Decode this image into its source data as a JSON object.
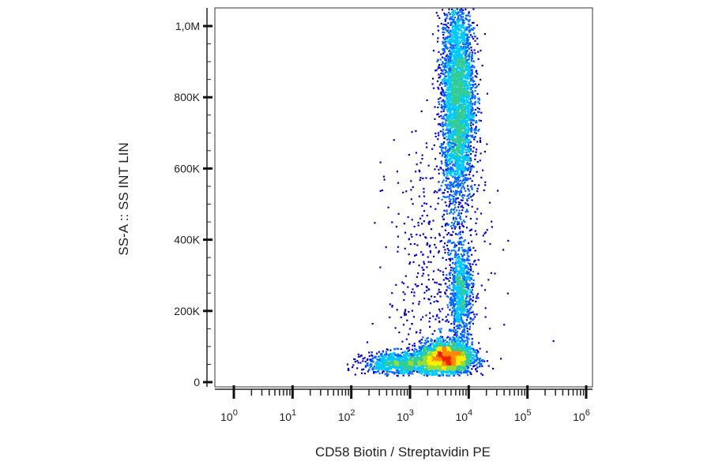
{
  "chart_data": {
    "type": "scatter",
    "title": "",
    "xlabel": "CD58 Biotin / Streptavidin PE",
    "ylabel": "SS-A :: SS INT LIN",
    "x_scale": "log",
    "y_scale": "linear",
    "xlim": [
      1,
      1000000
    ],
    "ylim": [
      0,
      1050000
    ],
    "x_ticks": [
      {
        "value": 1,
        "base": "10",
        "exp": "0"
      },
      {
        "value": 10,
        "base": "10",
        "exp": "1"
      },
      {
        "value": 100,
        "base": "10",
        "exp": "2"
      },
      {
        "value": 1000,
        "base": "10",
        "exp": "3"
      },
      {
        "value": 10000,
        "base": "10",
        "exp": "4"
      },
      {
        "value": 100000,
        "base": "10",
        "exp": "5"
      },
      {
        "value": 1000000,
        "base": "10",
        "exp": "6"
      }
    ],
    "y_ticks": [
      {
        "value": 0,
        "label": "0"
      },
      {
        "value": 200000,
        "label": "200K"
      },
      {
        "value": 400000,
        "label": "400K"
      },
      {
        "value": 600000,
        "label": "600K"
      },
      {
        "value": 800000,
        "label": "800K"
      },
      {
        "value": 1000000,
        "label": "1,0M"
      }
    ],
    "grid": false,
    "legend": "none",
    "density_colors": [
      "#0000cc",
      "#0066ff",
      "#00c8ff",
      "#33cc99",
      "#99dd33",
      "#ffee00",
      "#ff8800",
      "#ee2200"
    ],
    "populations": [
      {
        "x_log10_center": 3.6,
        "x_log10_spread": 0.22,
        "y_center": 70000,
        "y_spread": 22000,
        "weight": 0.32
      },
      {
        "x_log10_center": 2.9,
        "x_log10_spread": 0.35,
        "y_center": 55000,
        "y_spread": 16000,
        "weight": 0.12
      },
      {
        "x_log10_center": 3.85,
        "x_log10_spread": 0.1,
        "y_center": 250000,
        "y_spread": 70000,
        "weight": 0.1
      },
      {
        "x_log10_center": 3.8,
        "x_log10_spread": 0.14,
        "y_center": 800000,
        "y_spread": 150000,
        "weight": 0.4
      },
      {
        "x_log10_center": 3.5,
        "x_log10_spread": 0.45,
        "y_center": 300000,
        "y_spread": 200000,
        "weight": 0.06
      }
    ]
  }
}
